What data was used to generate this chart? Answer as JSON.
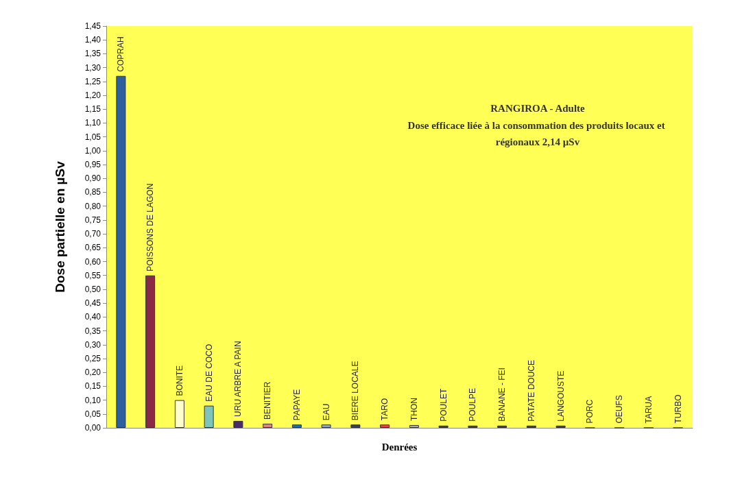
{
  "chart_data": {
    "type": "bar",
    "title": "RANGIROA - Adulte",
    "subtitle": "Dose efficace liée à la consommation des produits locaux et régionaux 2,14 µSv",
    "xlabel": "Denrées",
    "ylabel": "Dose partielle en µSv",
    "categories": [
      "COPRAH",
      "POISSONS DE LAGON",
      "BONITE",
      "EAU DE COCO",
      "URU ARBRE A PAIN",
      "BENITIER",
      "PAPAYE",
      "EAU",
      "BIERE LOCALE",
      "TARO",
      "THON",
      "POULET",
      "POULPE",
      "BANANE - FEI",
      "PATATE DOUCE",
      "LANGOUSTE",
      "PORC",
      "OEUFS",
      "TARUA",
      "TURBO"
    ],
    "values": [
      1.27,
      0.55,
      0.1,
      0.08,
      0.025,
      0.015,
      0.012,
      0.012,
      0.012,
      0.012,
      0.01,
      0.008,
      0.008,
      0.008,
      0.008,
      0.008,
      0,
      0,
      0,
      0
    ],
    "colors": [
      "#2e5fa0",
      "#8b2a45",
      "#ffffcc",
      "#7fc4b8",
      "#4b2a6e",
      "#e58080",
      "#1f6fb0",
      "#8fa5c8",
      "#3a3f5c",
      "#e8404a",
      "#b0b0a0",
      "#3b3b4b",
      "#3b3b4b",
      "#3b3b4b",
      "#3b3b4b",
      "#3b3b4b",
      "#3b3b4b",
      "#3b3b4b",
      "#3b3b4b",
      "#3b3b4b"
    ],
    "ylim": [
      0,
      1.45
    ],
    "yticks": [
      {
        "value": 0,
        "label": "0,00"
      },
      {
        "value": 0.05,
        "label": "0,05"
      },
      {
        "value": 0.1,
        "label": "0,10"
      },
      {
        "value": 0.15,
        "label": "0,15"
      },
      {
        "value": 0.2,
        "label": "0,20"
      },
      {
        "value": 0.25,
        "label": "0,25"
      },
      {
        "value": 0.3,
        "label": "0,30"
      },
      {
        "value": 0.35,
        "label": "0,35"
      },
      {
        "value": 0.4,
        "label": "0,40"
      },
      {
        "value": 0.45,
        "label": "0,45"
      },
      {
        "value": 0.5,
        "label": "0,50"
      },
      {
        "value": 0.55,
        "label": "0,55"
      },
      {
        "value": 0.6,
        "label": "0,60"
      },
      {
        "value": 0.65,
        "label": "0,65"
      },
      {
        "value": 0.7,
        "label": "0,70"
      },
      {
        "value": 0.75,
        "label": "0,75"
      },
      {
        "value": 0.8,
        "label": "0,80"
      },
      {
        "value": 0.85,
        "label": "0,85"
      },
      {
        "value": 0.9,
        "label": "0,90"
      },
      {
        "value": 0.95,
        "label": "0,95"
      },
      {
        "value": 1,
        "label": "1,00"
      },
      {
        "value": 1.05,
        "label": "1,05"
      },
      {
        "value": 1.1,
        "label": "1,10"
      },
      {
        "value": 1.15,
        "label": "1,15"
      },
      {
        "value": 1.2,
        "label": "1,20"
      },
      {
        "value": 1.25,
        "label": "1,25"
      },
      {
        "value": 1.3,
        "label": "1,30"
      },
      {
        "value": 1.35,
        "label": "1,35"
      },
      {
        "value": 1.4,
        "label": "1,40"
      },
      {
        "value": 1.45,
        "label": "1,45"
      }
    ],
    "grid": false,
    "tick_labels": "y"
  }
}
